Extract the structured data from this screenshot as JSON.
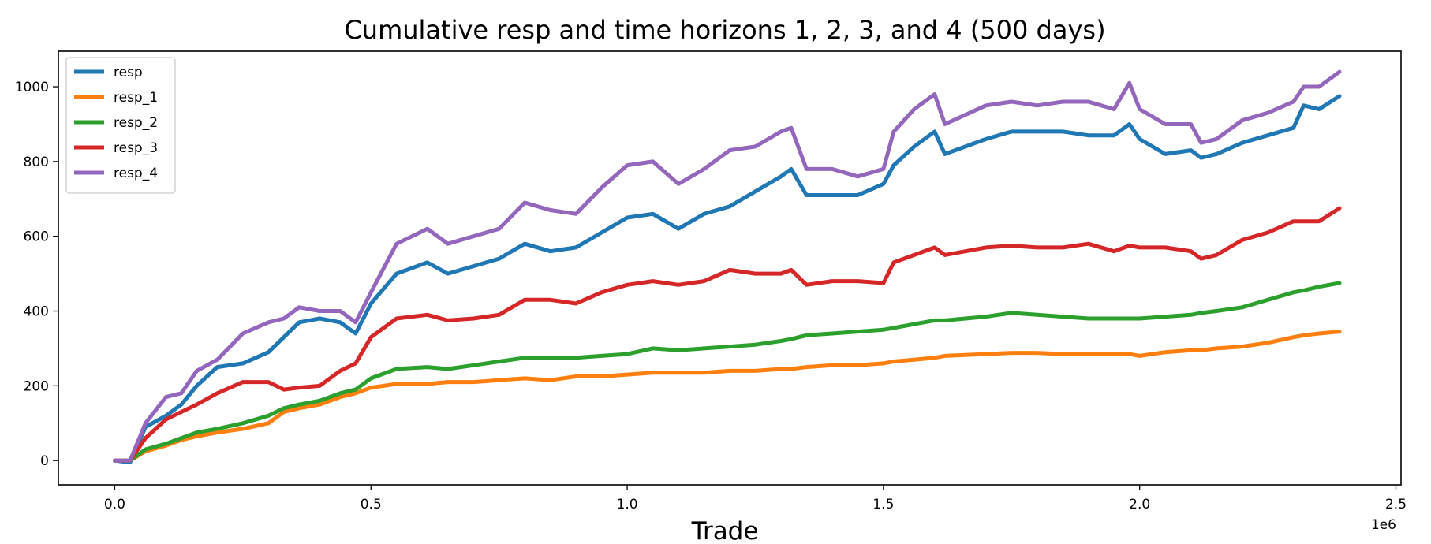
{
  "chart_data": {
    "type": "line",
    "title": "Cumulative resp and time horizons 1, 2, 3, and 4 (500 days)",
    "xlabel": "Trade",
    "ylabel": "",
    "x_offset_label": "1e6",
    "xlim": [
      -110000,
      2510000
    ],
    "ylim": [
      -65,
      1095
    ],
    "x_ticks": [
      0,
      500000,
      1000000,
      1500000,
      2000000,
      2500000
    ],
    "x_tick_labels": [
      "0.0",
      "0.5",
      "1.0",
      "1.5",
      "2.0",
      "2.5"
    ],
    "y_ticks": [
      0,
      200,
      400,
      600,
      800,
      1000
    ],
    "y_tick_labels": [
      "0",
      "200",
      "400",
      "600",
      "800",
      "1000"
    ],
    "grid": false,
    "legend_position": "upper-left",
    "x": [
      0,
      30000,
      60000,
      100000,
      130000,
      160000,
      200000,
      250000,
      300000,
      330000,
      360000,
      400000,
      440000,
      470000,
      500000,
      550000,
      610000,
      650000,
      700000,
      750000,
      800000,
      850000,
      900000,
      950000,
      1000000,
      1050000,
      1100000,
      1150000,
      1200000,
      1250000,
      1300000,
      1320000,
      1350000,
      1400000,
      1450000,
      1500000,
      1520000,
      1560000,
      1600000,
      1620000,
      1700000,
      1750000,
      1800000,
      1850000,
      1900000,
      1950000,
      1980000,
      2000000,
      2050000,
      2100000,
      2120000,
      2150000,
      2200000,
      2250000,
      2300000,
      2320000,
      2350000,
      2390000
    ],
    "series": [
      {
        "name": "resp",
        "color": "#1f77b4",
        "values": [
          0,
          -5,
          90,
          120,
          150,
          200,
          250,
          260,
          290,
          330,
          370,
          380,
          370,
          340,
          420,
          500,
          530,
          500,
          520,
          540,
          580,
          560,
          570,
          610,
          650,
          660,
          620,
          660,
          680,
          720,
          760,
          780,
          710,
          710,
          710,
          740,
          790,
          840,
          880,
          820,
          860,
          880,
          880,
          880,
          870,
          870,
          900,
          860,
          820,
          830,
          810,
          820,
          850,
          870,
          890,
          950,
          940,
          975
        ]
      },
      {
        "name": "resp_1",
        "color": "#ff7f0e",
        "values": [
          0,
          0,
          25,
          40,
          55,
          65,
          75,
          85,
          100,
          130,
          140,
          150,
          170,
          180,
          195,
          205,
          205,
          210,
          210,
          215,
          220,
          215,
          225,
          225,
          230,
          235,
          235,
          235,
          240,
          240,
          245,
          245,
          250,
          255,
          255,
          260,
          265,
          270,
          275,
          280,
          285,
          288,
          288,
          285,
          285,
          285,
          285,
          280,
          290,
          295,
          295,
          300,
          305,
          315,
          330,
          335,
          340,
          345
        ]
      },
      {
        "name": "resp_2",
        "color": "#2ca02c",
        "values": [
          0,
          0,
          30,
          45,
          60,
          75,
          85,
          100,
          120,
          140,
          150,
          160,
          180,
          190,
          220,
          245,
          250,
          245,
          255,
          265,
          275,
          275,
          275,
          280,
          285,
          300,
          295,
          300,
          305,
          310,
          320,
          325,
          335,
          340,
          345,
          350,
          355,
          365,
          375,
          375,
          385,
          395,
          390,
          385,
          380,
          380,
          380,
          380,
          385,
          390,
          395,
          400,
          410,
          430,
          450,
          455,
          465,
          475
        ]
      },
      {
        "name": "resp_3",
        "color": "#d62728",
        "values": [
          0,
          0,
          60,
          110,
          130,
          150,
          180,
          210,
          210,
          190,
          195,
          200,
          240,
          260,
          330,
          380,
          390,
          375,
          380,
          390,
          430,
          430,
          420,
          450,
          470,
          480,
          470,
          480,
          510,
          500,
          500,
          510,
          470,
          480,
          480,
          475,
          530,
          550,
          570,
          550,
          570,
          575,
          570,
          570,
          580,
          560,
          575,
          570,
          570,
          560,
          540,
          550,
          590,
          610,
          640,
          640,
          640,
          675
        ]
      },
      {
        "name": "resp_4",
        "color": "#9467bd",
        "values": [
          0,
          0,
          100,
          170,
          180,
          240,
          270,
          340,
          370,
          380,
          410,
          400,
          400,
          370,
          450,
          580,
          620,
          580,
          600,
          620,
          690,
          670,
          660,
          730,
          790,
          800,
          740,
          780,
          830,
          840,
          880,
          890,
          780,
          780,
          760,
          780,
          880,
          940,
          980,
          900,
          950,
          960,
          950,
          960,
          960,
          940,
          1010,
          940,
          900,
          900,
          850,
          860,
          910,
          930,
          960,
          1000,
          1000,
          1040
        ]
      }
    ]
  }
}
